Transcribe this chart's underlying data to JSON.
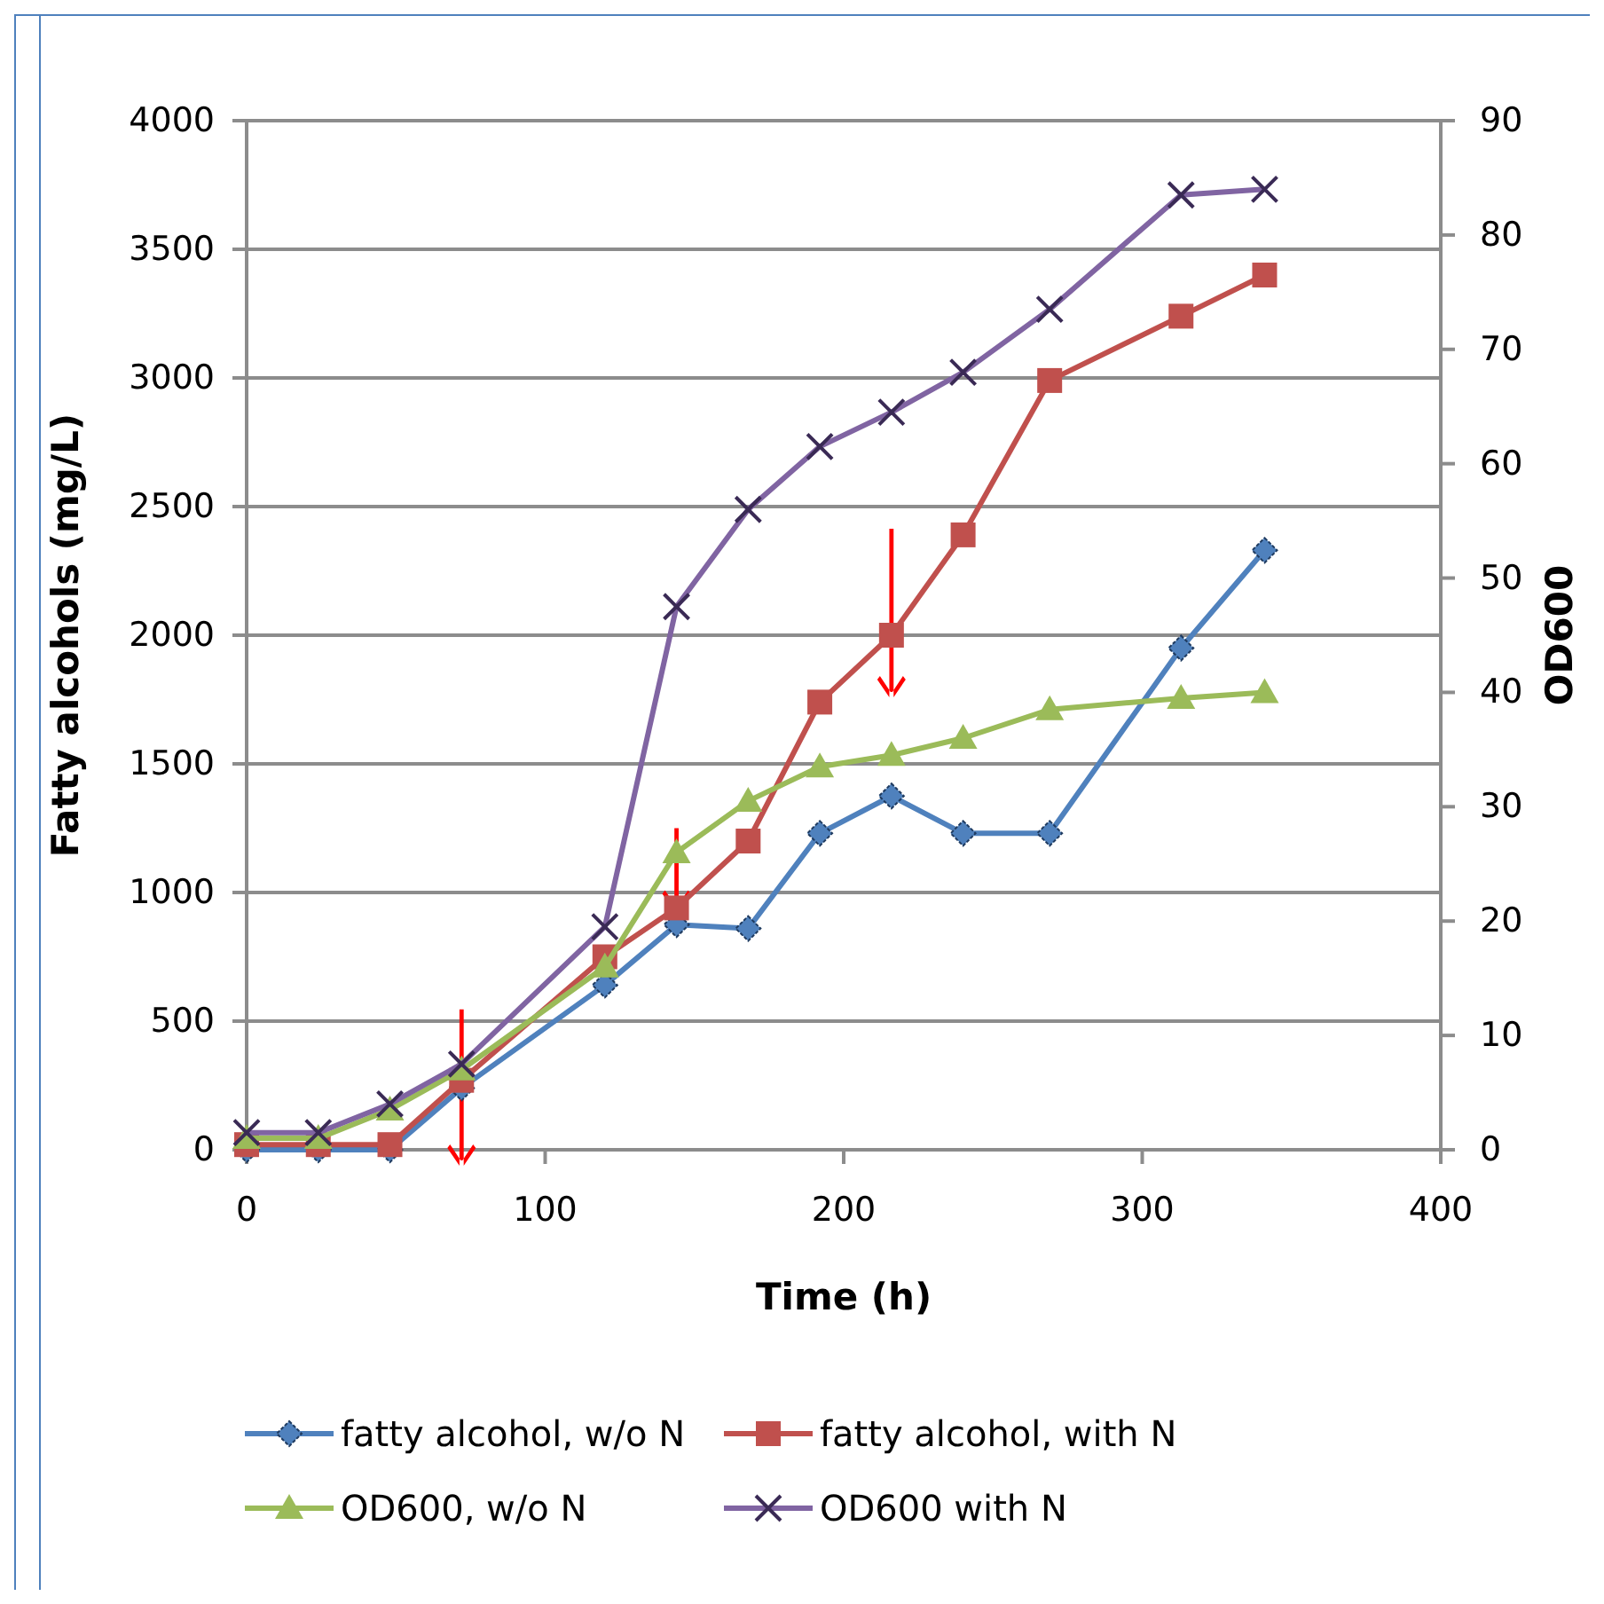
{
  "chart_data": {
    "type": "line",
    "xlabel": "Time (h)",
    "ylabel": "Fatty alcohols (mg/L)",
    "y2label": "OD600",
    "xlim": [
      0,
      400
    ],
    "xticks": [
      0,
      100,
      200,
      300,
      400
    ],
    "ylim": [
      0,
      4000
    ],
    "yticks": [
      0,
      500,
      1000,
      1500,
      2000,
      2500,
      3000,
      3500,
      4000
    ],
    "y2lim": [
      0,
      90
    ],
    "y2ticks": [
      0,
      10,
      20,
      30,
      40,
      50,
      60,
      70,
      80,
      90
    ],
    "grid": "y",
    "legend": "bottom",
    "x": [
      0,
      24,
      48,
      72,
      120,
      144,
      168,
      192,
      216,
      240,
      269,
      313,
      341
    ],
    "series": [
      {
        "name": "fatty alcohol, w/o N",
        "color": "#4f81bd",
        "marker": "diamond",
        "values": [
          0,
          0,
          0,
          240,
          640,
          875,
          860,
          1230,
          1375,
          1230,
          1230,
          1950,
          2330
        ]
      },
      {
        "name": "fatty alcohol, with N",
        "color": "#c0504d",
        "marker": "square",
        "values": [
          20,
          20,
          20,
          270,
          750,
          940,
          1200,
          1740,
          2000,
          2390,
          2990,
          3240,
          3400
        ]
      },
      {
        "name": "OD600, w/o N",
        "color": "#9bbb59",
        "marker": "triangle",
        "axis": "y2",
        "values": [
          1,
          1,
          3.5,
          7,
          16,
          26,
          30.5,
          33.5,
          34.5,
          36,
          38.5,
          39.5,
          40
        ]
      },
      {
        "name": "OD600 with N",
        "color": "#8064a2",
        "marker": "cross",
        "axis": "y2",
        "values": [
          1.5,
          1.5,
          4,
          7.5,
          19.5,
          47.5,
          56,
          61.5,
          64.5,
          68,
          73.5,
          83.5,
          84
        ]
      }
    ]
  }
}
